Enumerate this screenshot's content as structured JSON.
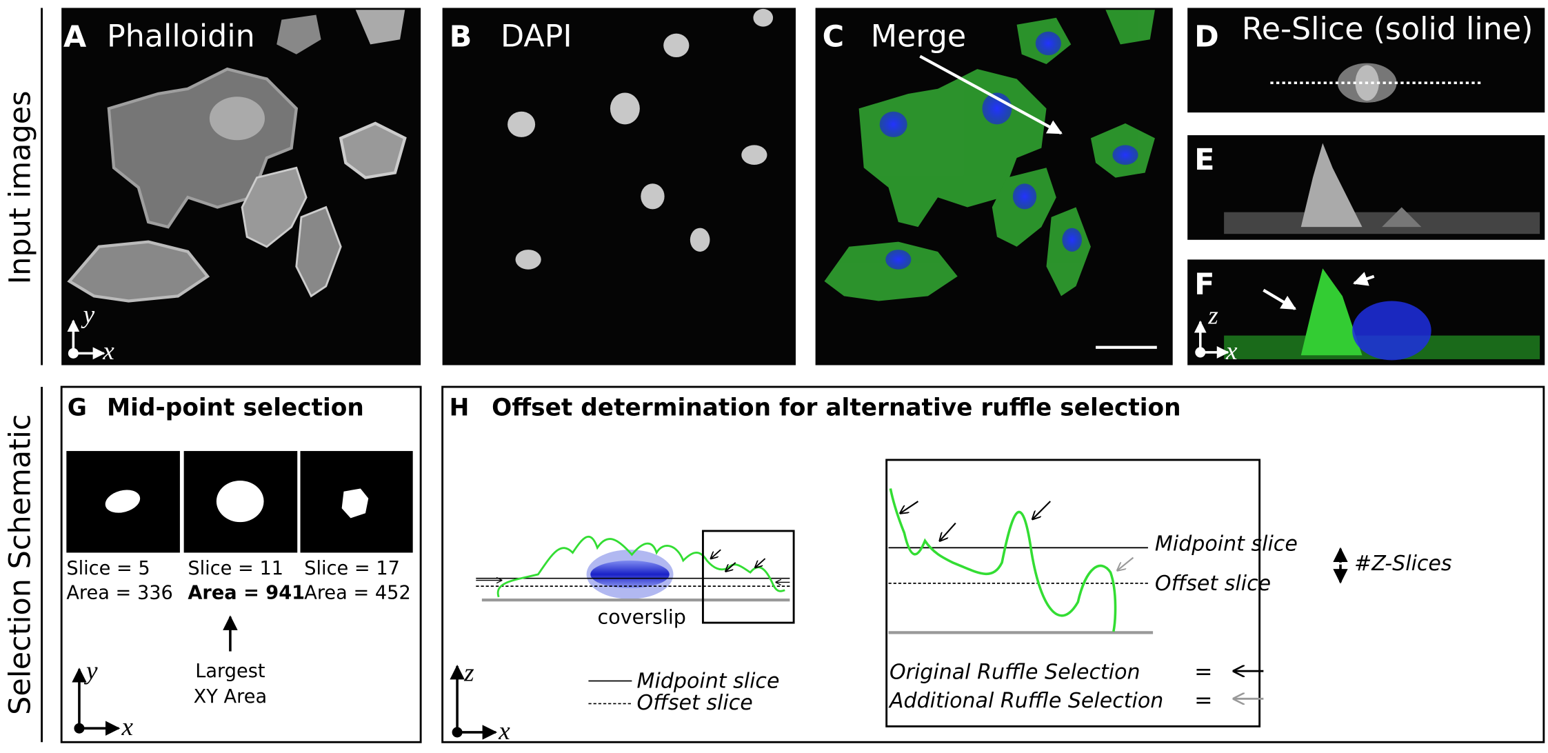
{
  "side_labels": {
    "top": "Input images",
    "bottom": "Selection Schematic"
  },
  "panels": [
    {
      "letter": "A",
      "title": "Phalloidin"
    },
    {
      "letter": "B",
      "title": "DAPI"
    },
    {
      "letter": "C",
      "title": "Merge"
    },
    {
      "letter": "D",
      "title": "Re-Slice (solid line)"
    },
    {
      "letter": "E"
    },
    {
      "letter": "F"
    }
  ],
  "axes_a": {
    "y": "y",
    "x": "x"
  },
  "axes_f": {
    "z": "z",
    "x": "x"
  },
  "panel_g": {
    "letter": "G",
    "title": "Mid-point selection",
    "slices": [
      {
        "slice": "Slice = 5",
        "area": "Area = 336"
      },
      {
        "slice": "Slice = 11",
        "area": "Area = 941"
      },
      {
        "slice": "Slice = 17",
        "area": "Area = 452"
      }
    ],
    "note": [
      "Largest",
      "XY Area"
    ],
    "axes": {
      "y": "y",
      "x": "x"
    }
  },
  "panel_h": {
    "letter": "H",
    "title": "Offset determination for alternative ruffle selection",
    "coverslip": "coverslip",
    "legend": [
      "Midpoint slice",
      "Offset slice"
    ],
    "inset": {
      "midpoint": "Midpoint slice",
      "offset": "Offset slice",
      "z_slices": "#Z-Slices",
      "original": "Original Ruffle Selection",
      "additional": "Additional Ruffle Selection",
      "equals": "="
    },
    "axes": {
      "z": "z",
      "x": "x"
    }
  }
}
